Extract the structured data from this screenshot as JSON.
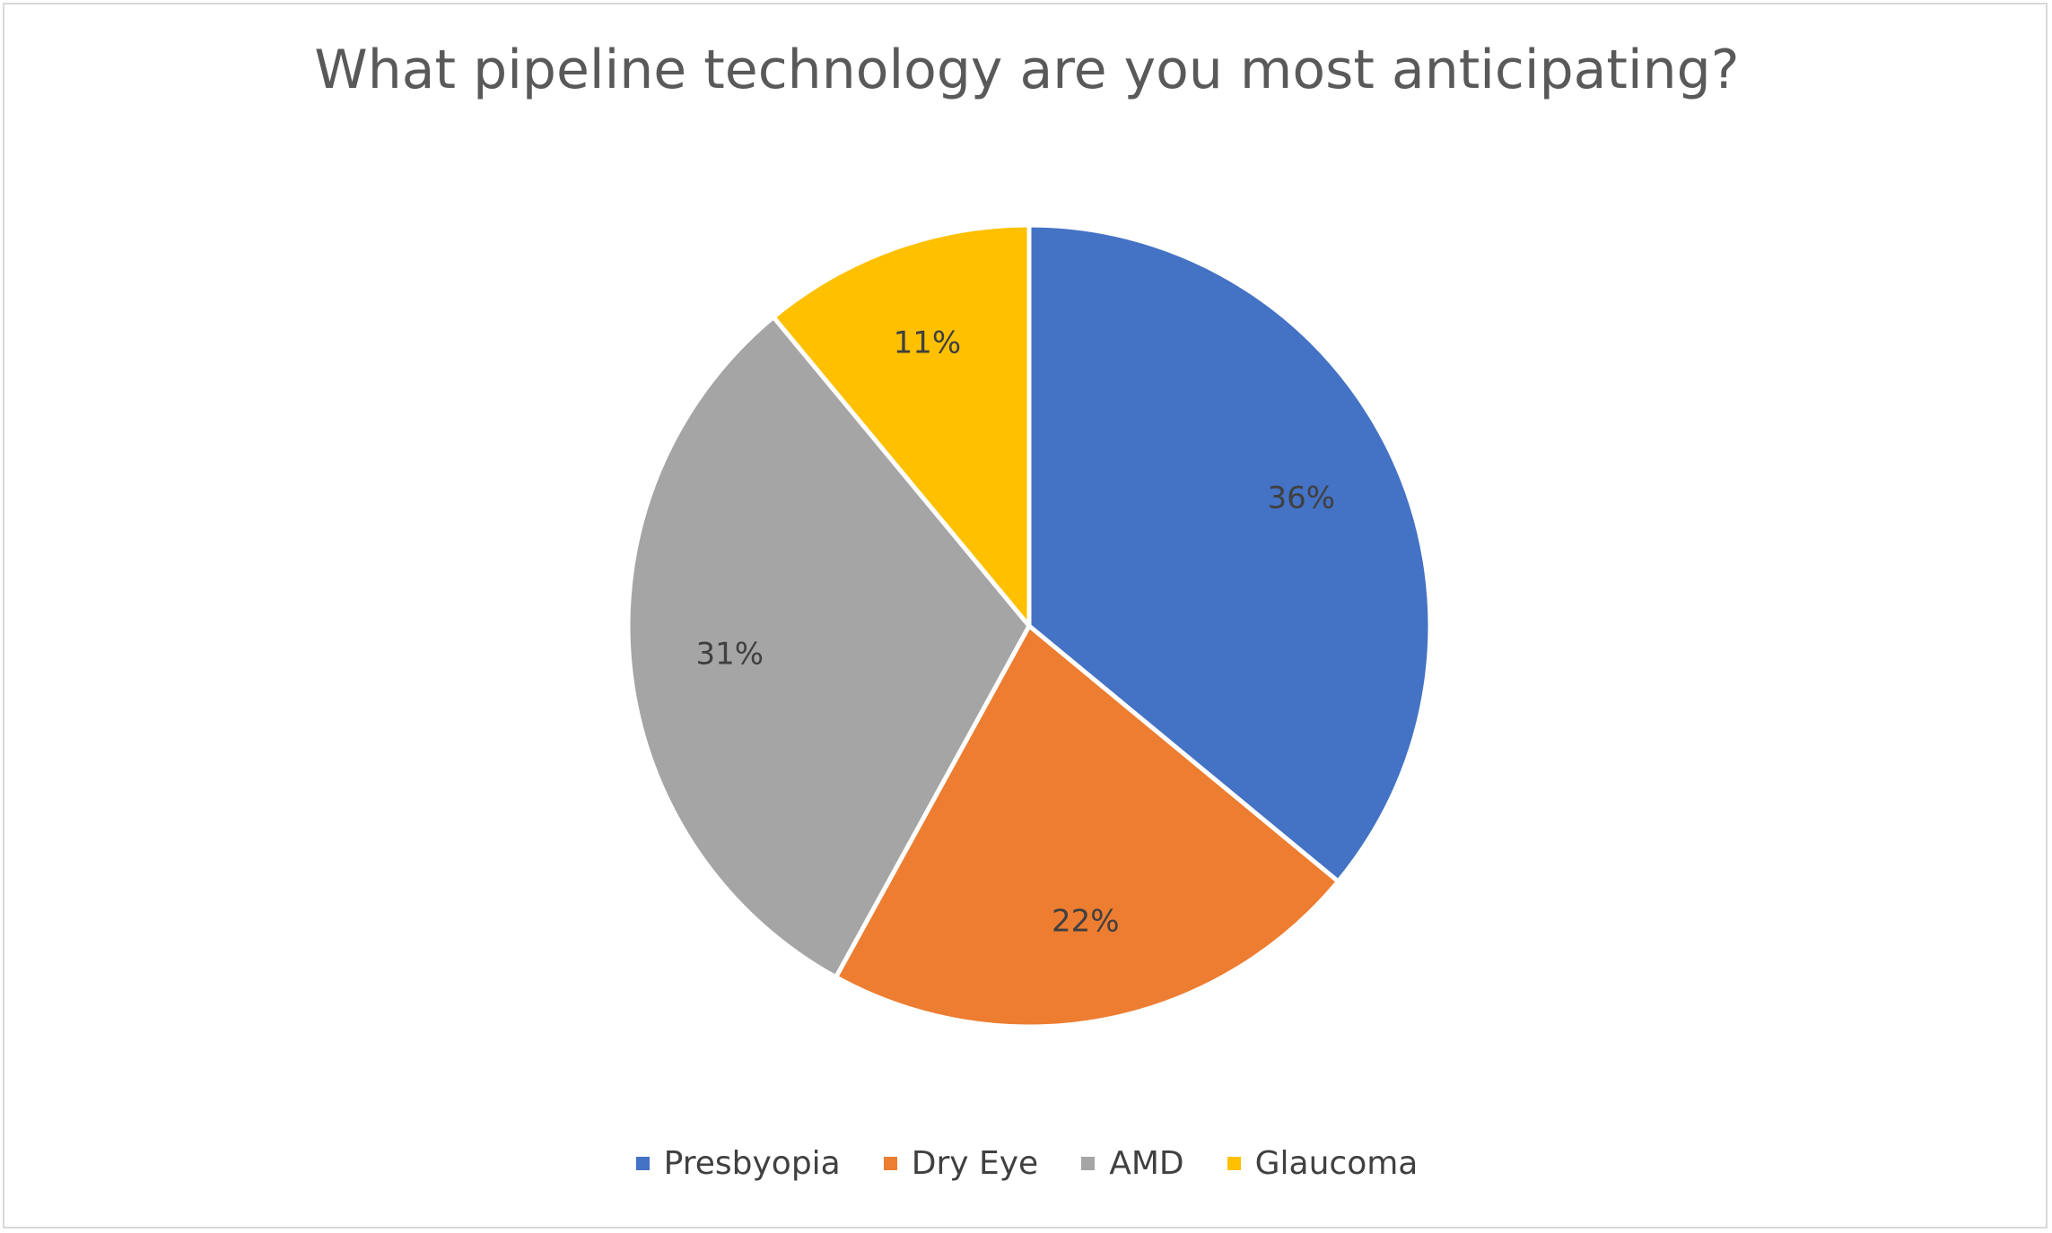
{
  "chart_data": {
    "type": "pie",
    "title": "What pipeline technology are you most anticipating?",
    "categories": [
      "Presbyopia",
      "Dry Eye",
      "AMD",
      "Glaucoma"
    ],
    "values": [
      36,
      22,
      31,
      11
    ],
    "labels": [
      "36%",
      "22%",
      "31%",
      "11%"
    ],
    "colors": [
      "#4472c4",
      "#ed7d31",
      "#a5a5a5",
      "#ffc000"
    ],
    "legend_position": "bottom",
    "start_angle": "top (12 o'clock), clockwise"
  }
}
